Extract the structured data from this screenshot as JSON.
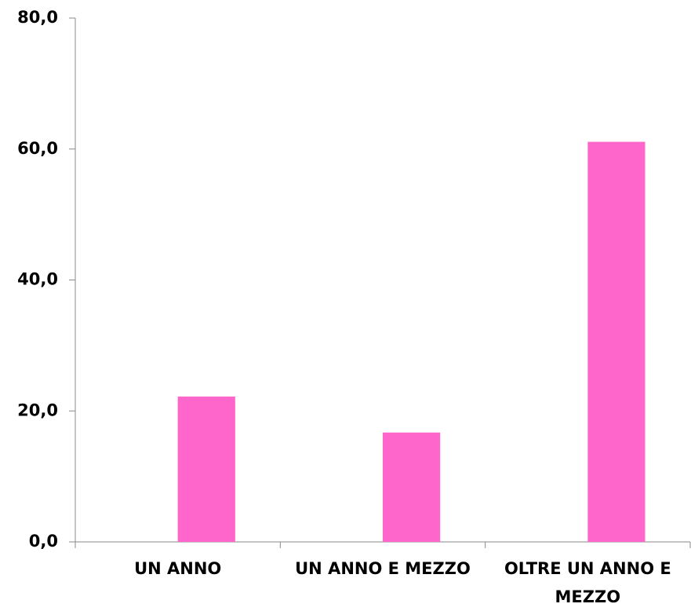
{
  "chart_data": {
    "type": "bar",
    "categories": [
      "UN ANNO",
      "UN ANNO E MEZZO",
      "OLTRE UN ANNO E MEZZO"
    ],
    "values": [
      22.2,
      16.7,
      61.1
    ],
    "color": "#ff66cc",
    "ylim": [
      0,
      80
    ],
    "yticks": [
      {
        "value": 0,
        "label": "0,0"
      },
      {
        "value": 20,
        "label": "20,0"
      },
      {
        "value": 40,
        "label": "40,0"
      },
      {
        "value": 60,
        "label": "60,0"
      },
      {
        "value": 80,
        "label": "80,0"
      }
    ],
    "grid": false
  }
}
